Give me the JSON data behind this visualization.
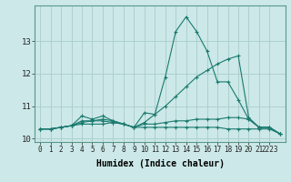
{
  "xlabel": "Humidex (Indice chaleur)",
  "bg_color": "#cce8e8",
  "grid_color": "#aacccc",
  "line_color": "#1a7a6e",
  "x_values": [
    0,
    1,
    2,
    3,
    4,
    5,
    6,
    7,
    8,
    9,
    10,
    11,
    12,
    13,
    14,
    15,
    16,
    17,
    18,
    19,
    20,
    21,
    22,
    23
  ],
  "series": [
    [
      10.3,
      10.3,
      10.35,
      10.4,
      10.7,
      10.6,
      10.7,
      10.55,
      10.45,
      10.35,
      10.8,
      10.75,
      11.9,
      13.3,
      13.75,
      13.3,
      12.7,
      11.75,
      11.75,
      11.2,
      10.6,
      10.35,
      10.35,
      10.15
    ],
    [
      10.3,
      10.3,
      10.35,
      10.4,
      10.5,
      10.55,
      10.6,
      10.55,
      10.45,
      10.35,
      10.5,
      10.75,
      11.0,
      11.3,
      11.6,
      11.9,
      12.1,
      12.3,
      12.45,
      12.55,
      10.65,
      10.35,
      10.35,
      10.15
    ],
    [
      10.3,
      10.3,
      10.35,
      10.4,
      10.45,
      10.45,
      10.45,
      10.5,
      10.45,
      10.35,
      10.35,
      10.35,
      10.35,
      10.35,
      10.35,
      10.35,
      10.35,
      10.35,
      10.3,
      10.3,
      10.3,
      10.3,
      10.3,
      10.15
    ],
    [
      10.3,
      10.3,
      10.35,
      10.4,
      10.55,
      10.55,
      10.55,
      10.5,
      10.45,
      10.35,
      10.45,
      10.45,
      10.5,
      10.55,
      10.55,
      10.6,
      10.6,
      10.6,
      10.65,
      10.65,
      10.6,
      10.35,
      10.35,
      10.15
    ]
  ],
  "ylim": [
    9.9,
    14.1
  ],
  "yticks": [
    10,
    11,
    12,
    13
  ],
  "xtick_positions": [
    0,
    1,
    2,
    3,
    4,
    5,
    6,
    7,
    8,
    9,
    10,
    11,
    12,
    13,
    14,
    15,
    16,
    17,
    18,
    19,
    20,
    21,
    22
  ],
  "xtick_labels": [
    "0",
    "1",
    "2",
    "3",
    "4",
    "5",
    "6",
    "7",
    "8",
    "9",
    "10",
    "11",
    "12",
    "13",
    "14",
    "15",
    "16",
    "17",
    "18",
    "19",
    "20",
    "21",
    "2223"
  ]
}
